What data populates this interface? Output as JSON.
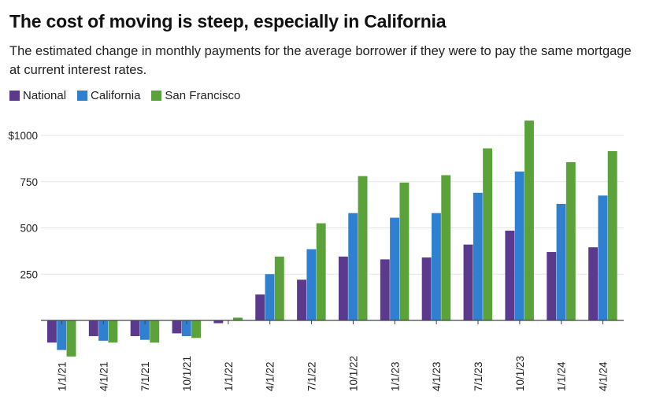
{
  "title": "The cost of moving is steep, especially in California",
  "subtitle": "The estimated change in monthly payments for the average borrower if they were to pay the same mortgage at current interest rates.",
  "colors": {
    "National": "#5b3a8e",
    "California": "#2f80d1",
    "San Francisco": "#5ba23b",
    "grid": "#e6e6e6",
    "axis": "#444444"
  },
  "chart_data": {
    "type": "bar",
    "title": "The cost of moving is steep, especially in California",
    "xlabel": "",
    "ylabel": "",
    "ylim": [
      -200,
      1100
    ],
    "yticks": [
      {
        "value": 250,
        "label": "250"
      },
      {
        "value": 500,
        "label": "500"
      },
      {
        "value": 750,
        "label": "750"
      },
      {
        "value": 1000,
        "label": "$1000"
      }
    ],
    "grid": true,
    "legend_position": "top-left",
    "categories": [
      "1/1/21",
      "4/1/21",
      "7/1/21",
      "10/1/21",
      "1/1/22",
      "4/1/22",
      "7/1/22",
      "10/1/22",
      "1/1/23",
      "4/1/23",
      "7/1/23",
      "10/1/23",
      "1/1/24",
      "4/1/24"
    ],
    "series": [
      {
        "name": "National",
        "values": [
          -120,
          -85,
          -85,
          -70,
          -15,
          140,
          220,
          345,
          330,
          340,
          410,
          485,
          370,
          395
        ]
      },
      {
        "name": "California",
        "values": [
          -160,
          -110,
          -105,
          -85,
          0,
          250,
          385,
          580,
          555,
          580,
          690,
          805,
          630,
          675
        ]
      },
      {
        "name": "San Francisco",
        "values": [
          -195,
          -120,
          -120,
          -95,
          15,
          345,
          525,
          780,
          745,
          785,
          930,
          1080,
          855,
          915
        ]
      }
    ]
  }
}
